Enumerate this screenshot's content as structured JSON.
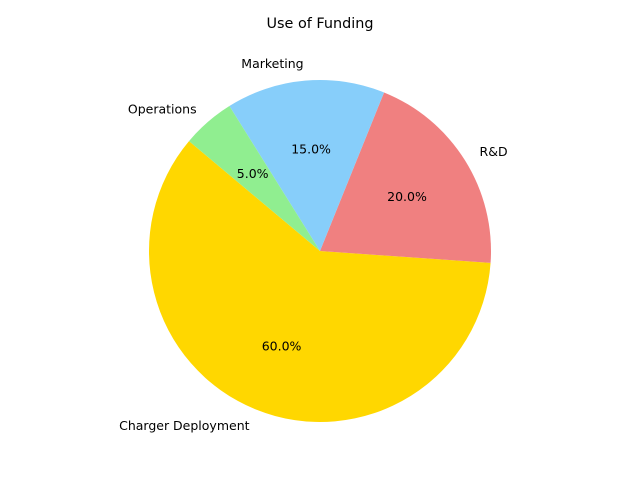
{
  "chart_data": {
    "type": "pie",
    "title": "Use of Funding",
    "categories": [
      "Charger Deployment",
      "R&D",
      "Marketing",
      "Operations"
    ],
    "values": [
      60,
      20,
      15,
      5
    ],
    "percent_labels": [
      "60.0%",
      "20.0%",
      "15.0%",
      "5.0%"
    ],
    "colors": [
      "#FFD700",
      "#F08080",
      "#87CEFA",
      "#90EE90"
    ],
    "start_angle_deg": 140,
    "direction": "counterclockwise",
    "legend": "none",
    "grid": false
  }
}
